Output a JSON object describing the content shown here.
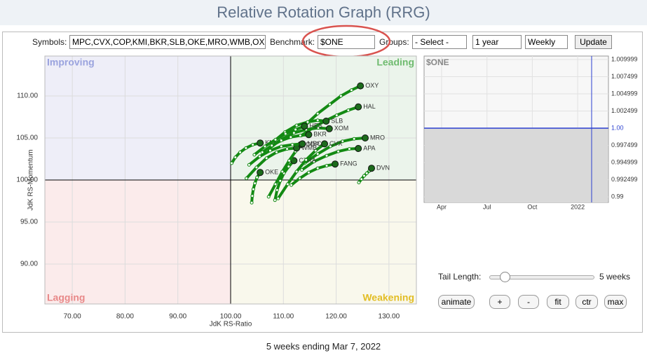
{
  "header": {
    "title": "Relative Rotation Graph (RRG)"
  },
  "controls": {
    "symbols_label": "Symbols:",
    "symbols_value": "MPC,CVX,COP,KMI,BKR,SLB,OKE,MRO,WMB,OX",
    "benchmark_label": "Benchmark:",
    "benchmark_value": "$ONE",
    "groups_label": "Groups:",
    "groups_value": "- Select -",
    "period_value": "1 year",
    "frequency_value": "Weekly",
    "update_button": "Update",
    "tail_label": "Tail Length:",
    "tail_value": "5 weeks",
    "buttons": [
      "animate",
      "+",
      "-",
      "fit",
      "ctr",
      "max"
    ]
  },
  "footer": {
    "text": "5 weeks ending Mar 7, 2022"
  },
  "chart_data": [
    {
      "type": "scatter",
      "xlabel": "JdK RS-Ratio",
      "ylabel": "JdK RS-Momentum",
      "quadrants": [
        "Improving",
        "Leading",
        "Lagging",
        "Weakening"
      ],
      "xlim": [
        64.8,
        135.2
      ],
      "ylim": [
        85.25,
        114.75
      ],
      "xticks": [
        {
          "value": 70,
          "label": "70.00"
        },
        {
          "value": 80,
          "label": "80.00"
        },
        {
          "value": 90,
          "label": "90.00"
        },
        {
          "value": 100,
          "label": "100.00"
        },
        {
          "value": 110,
          "label": "110.00"
        },
        {
          "value": 120,
          "label": "120.00"
        },
        {
          "value": 130,
          "label": "130.00"
        }
      ],
      "yticks": [
        {
          "value": 90,
          "label": "90.00"
        },
        {
          "value": 95,
          "label": "95.00"
        },
        {
          "value": 100,
          "label": "100.00"
        },
        {
          "value": 105,
          "label": "105.00"
        },
        {
          "value": 110,
          "label": "110.00"
        }
      ],
      "grid": true,
      "color": "#138a13",
      "series": [
        {
          "name": "OXY",
          "x": [
            114.6,
            116.5,
            118.8,
            120.9,
            122.9,
            124.6
          ],
          "values": [
            106.8,
            107.9,
            109.0,
            110.0,
            110.7,
            111.2
          ]
        },
        {
          "name": "HAL",
          "x": [
            113.4,
            115.6,
            117.8,
            120.1,
            122.3,
            124.2
          ],
          "values": [
            105.3,
            106.2,
            107.0,
            107.7,
            108.3,
            108.7
          ]
        },
        {
          "name": "SLB",
          "x": [
            108.0,
            110.3,
            112.5,
            114.6,
            116.5,
            118.1
          ],
          "values": [
            104.5,
            105.7,
            106.5,
            106.9,
            107.1,
            107.0
          ]
        },
        {
          "name": "XOM",
          "x": [
            106.8,
            109.5,
            112.0,
            114.3,
            116.6,
            118.7
          ],
          "values": [
            103.5,
            104.8,
            105.6,
            106.0,
            106.2,
            106.1
          ]
        },
        {
          "name": "MRO",
          "x": [
            114.0,
            116.5,
            118.9,
            121.2,
            123.4,
            125.5
          ],
          "values": [
            102.0,
            103.1,
            104.0,
            104.6,
            104.9,
            105.0
          ]
        },
        {
          "name": "APA",
          "x": [
            113.5,
            115.8,
            118.2,
            120.4,
            122.5,
            124.2
          ],
          "values": [
            101.2,
            102.2,
            102.9,
            103.4,
            103.7,
            103.75
          ]
        },
        {
          "name": "FANG",
          "x": [
            111.5,
            113.1,
            114.8,
            116.5,
            118.2,
            119.8
          ],
          "values": [
            99.4,
            100.2,
            100.9,
            101.4,
            101.7,
            101.9
          ]
        },
        {
          "name": "DVN",
          "x": [
            124.3,
            124.8,
            125.3,
            125.8,
            126.3,
            126.7
          ],
          "values": [
            99.7,
            100.1,
            100.5,
            100.8,
            101.1,
            101.4
          ]
        },
        {
          "name": "OKE",
          "x": [
            104.0,
            104.1,
            104.3,
            104.6,
            105.0,
            105.6
          ],
          "values": [
            97.3,
            98.1,
            98.9,
            99.6,
            100.3,
            100.9
          ]
        },
        {
          "name": "KMI",
          "x": [
            100.2,
            100.9,
            101.8,
            102.9,
            104.2,
            105.6
          ],
          "values": [
            102.0,
            102.7,
            103.3,
            103.8,
            104.2,
            104.4
          ]
        },
        {
          "name": "CTRA",
          "x": [
            108.4,
            108.8,
            109.4,
            110.1,
            111.0,
            112.0
          ],
          "values": [
            97.6,
            98.8,
            99.9,
            100.8,
            101.6,
            102.3
          ]
        },
        {
          "name": "COP",
          "x": [
            107.2,
            108.5,
            109.8,
            111.1,
            112.3,
            113.3
          ],
          "values": [
            98.0,
            99.5,
            101.0,
            102.3,
            103.4,
            104.2
          ]
        },
        {
          "name": "CVX",
          "x": [
            109.0,
            110.8,
            112.5,
            114.3,
            116.1,
            117.8
          ],
          "values": [
            97.8,
            99.5,
            101.0,
            102.4,
            103.5,
            104.3
          ]
        },
        {
          "name": "HES",
          "x": [
            104.5,
            106.5,
            108.5,
            110.4,
            112.3,
            114.0
          ],
          "values": [
            103.0,
            104.0,
            104.8,
            105.5,
            106.0,
            106.4
          ]
        },
        {
          "name": "WMB",
          "x": [
            103.0,
            104.9,
            106.8,
            108.7,
            110.7,
            112.5
          ],
          "values": [
            100.2,
            101.5,
            102.6,
            103.3,
            103.7,
            103.8
          ]
        },
        {
          "name": "BKR",
          "x": [
            106.0,
            107.8,
            109.6,
            111.4,
            113.2,
            114.8
          ],
          "values": [
            103.3,
            104.1,
            104.7,
            105.1,
            105.3,
            105.4
          ]
        },
        {
          "name": "MPC",
          "x": [
            103.5,
            105.5,
            107.5,
            109.6,
            111.7,
            113.6
          ],
          "values": [
            101.8,
            102.8,
            103.5,
            104.0,
            104.2,
            104.3
          ]
        }
      ]
    },
    {
      "type": "line",
      "title": "$ONE",
      "categories": [
        "Apr",
        "Jul",
        "Oct",
        "2022"
      ],
      "values": [
        1,
        1,
        1,
        1
      ],
      "color": "#2b3fd0",
      "ylim": [
        0.9892,
        1.0105
      ],
      "yticks": [
        0.99,
        0.992499,
        0.994999,
        0.997499,
        {
          "value": 1,
          "label": "1.00"
        },
        1.002499,
        1.004999,
        1.007499,
        1.009999
      ]
    }
  ]
}
